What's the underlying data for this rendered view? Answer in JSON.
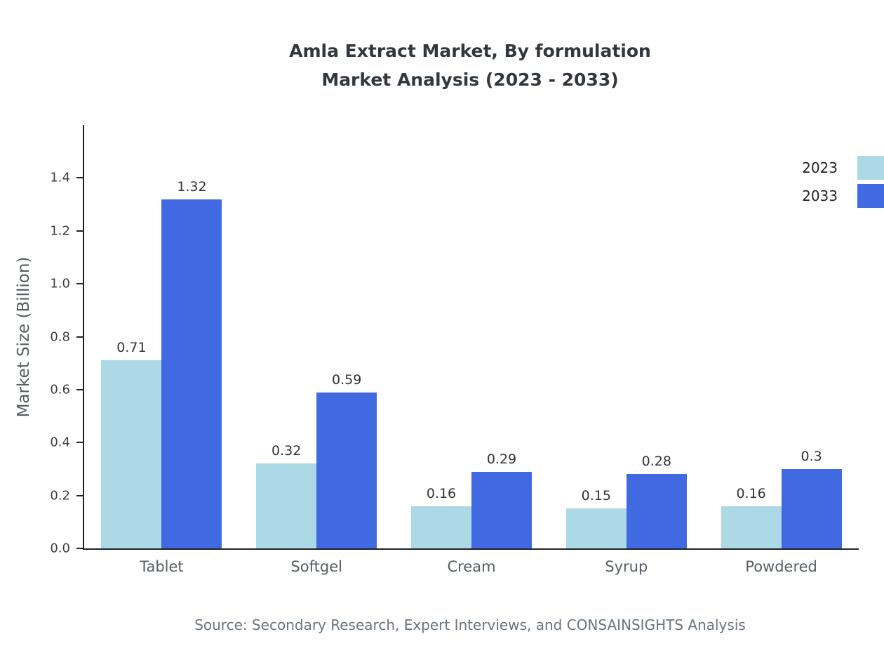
{
  "title_lines": [
    "Amla Extract Market, By formulation",
    "Market Analysis (2023 - 2033)"
  ],
  "source": "Source: Secondary Research, Expert Interviews, and CONSAINSIGHTS Analysis",
  "colors": {
    "series_2023": "#ADD8E6",
    "series_2033": "#4169E1",
    "axis": "#202428"
  },
  "chart_data": {
    "type": "bar",
    "title": "Amla Extract Market, By formulation Market Analysis (2023 - 2033)",
    "categories": [
      "Tablet",
      "Softgel",
      "Cream",
      "Syrup",
      "Powdered"
    ],
    "series": [
      {
        "name": "2023",
        "color": "#ADD8E6",
        "values": [
          0.71,
          0.32,
          0.16,
          0.15,
          0.16
        ]
      },
      {
        "name": "2033",
        "color": "#4169E1",
        "values": [
          1.32,
          0.59,
          0.29,
          0.28,
          0.3
        ]
      }
    ],
    "xlabel": "",
    "ylabel": "Market Size (Billion)",
    "ylim": [
      0,
      1.6
    ],
    "yticks": [
      0.0,
      0.2,
      0.4,
      0.6,
      0.8,
      1.0,
      1.2,
      1.4
    ],
    "grid": false,
    "legend_position": "top-right",
    "value_labels": true
  }
}
